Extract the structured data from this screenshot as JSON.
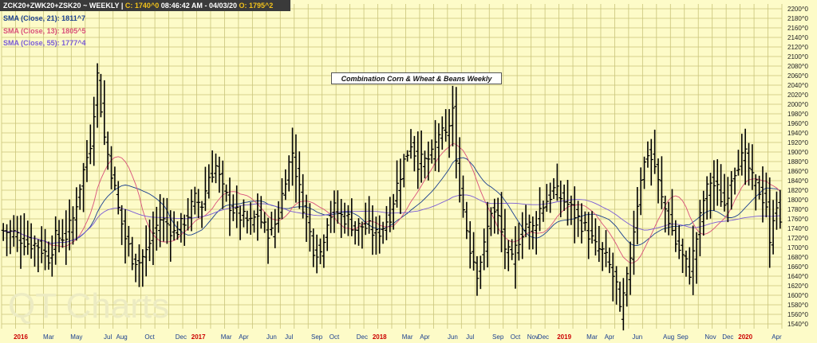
{
  "header": {
    "symbol": "ZCK20+ZWK20+ZSK20",
    "separator1": "~",
    "timeframe": "WEEKLY",
    "separator2": "|",
    "close": "C: 1740^0",
    "time": "08:46:42 AM",
    "separator3": "-",
    "date": "04/03/20",
    "open": "O: 1795^2"
  },
  "legend": [
    {
      "label": "SMA (Close, 21): 1811^7",
      "color": "#1a3f8f"
    },
    {
      "label": "SMA (Close, 13): 1805^5",
      "color": "#d9507a"
    },
    {
      "label": "SMA (Close, 55): 1777^4",
      "color": "#7a5cd6"
    }
  ],
  "watermark": "QT Charts",
  "colors": {
    "background": "#fdfbc8",
    "grid": "#c9c47a",
    "bars": "#000000",
    "year_labels": "#cc0000",
    "month_labels": "#1a3f8f"
  },
  "chart_data": {
    "type": "ohlc",
    "title": "Combination Corn & Wheat & Beans Weekly",
    "ylim": [
      1530,
      2210
    ],
    "y_ticks": [
      "1540^0",
      "1560^0",
      "1580^0",
      "1600^0",
      "1620^0",
      "1640^0",
      "1660^0",
      "1680^0",
      "1700^0",
      "1720^0",
      "1740^0",
      "1760^0",
      "1780^0",
      "1800^0",
      "1820^0",
      "1840^0",
      "1860^0",
      "1880^0",
      "1900^0",
      "1920^0",
      "1940^0",
      "1960^0",
      "1980^0",
      "2000^0",
      "2020^0",
      "2040^0",
      "2060^0",
      "2080^0",
      "2100^0",
      "2120^0",
      "2140^0",
      "2160^0",
      "2180^0",
      "2200^0"
    ],
    "grid": true,
    "x_labels": [
      {
        "label": "2016",
        "week": 5,
        "kind": "year"
      },
      {
        "label": "Mar",
        "week": 13,
        "kind": "month"
      },
      {
        "label": "May",
        "week": 21,
        "kind": "month"
      },
      {
        "label": "Jul",
        "week": 30,
        "kind": "month"
      },
      {
        "label": "Aug",
        "week": 34,
        "kind": "month"
      },
      {
        "label": "Oct",
        "week": 42,
        "kind": "month"
      },
      {
        "label": "Dec",
        "week": 51,
        "kind": "month"
      },
      {
        "label": "2017",
        "week": 56,
        "kind": "year"
      },
      {
        "label": "Mar",
        "week": 64,
        "kind": "month"
      },
      {
        "label": "Apr",
        "week": 69,
        "kind": "month"
      },
      {
        "label": "Jun",
        "week": 77,
        "kind": "month"
      },
      {
        "label": "Jul",
        "week": 82,
        "kind": "month"
      },
      {
        "label": "Sep",
        "week": 90,
        "kind": "month"
      },
      {
        "label": "Oct",
        "week": 95,
        "kind": "month"
      },
      {
        "label": "Dec",
        "week": 103,
        "kind": "month"
      },
      {
        "label": "2018",
        "week": 108,
        "kind": "year"
      },
      {
        "label": "Mar",
        "week": 116,
        "kind": "month"
      },
      {
        "label": "Apr",
        "week": 121,
        "kind": "month"
      },
      {
        "label": "Jun",
        "week": 129,
        "kind": "month"
      },
      {
        "label": "Jul",
        "week": 134,
        "kind": "month"
      },
      {
        "label": "Sep",
        "week": 142,
        "kind": "month"
      },
      {
        "label": "Oct",
        "week": 147,
        "kind": "month"
      },
      {
        "label": "Nov",
        "week": 152,
        "kind": "month"
      },
      {
        "label": "Dec",
        "week": 155,
        "kind": "month"
      },
      {
        "label": "2019",
        "week": 161,
        "kind": "year"
      },
      {
        "label": "Mar",
        "week": 169,
        "kind": "month"
      },
      {
        "label": "Apr",
        "week": 174,
        "kind": "month"
      },
      {
        "label": "Jun",
        "week": 182,
        "kind": "month"
      },
      {
        "label": "Aug",
        "week": 191,
        "kind": "month"
      },
      {
        "label": "Sep",
        "week": 195,
        "kind": "month"
      },
      {
        "label": "Nov",
        "week": 203,
        "kind": "month"
      },
      {
        "label": "Dec",
        "week": 208,
        "kind": "month"
      },
      {
        "label": "2020",
        "week": 213,
        "kind": "year"
      },
      {
        "label": "Apr",
        "week": 222,
        "kind": "month"
      }
    ],
    "key_closes": [
      [
        0,
        1735
      ],
      [
        3,
        1730
      ],
      [
        7,
        1710
      ],
      [
        10,
        1705
      ],
      [
        13,
        1680
      ],
      [
        15,
        1720
      ],
      [
        18,
        1725
      ],
      [
        20,
        1760
      ],
      [
        22,
        1830
      ],
      [
        25,
        1920
      ],
      [
        27,
        2060
      ],
      [
        29,
        1930
      ],
      [
        31,
        1860
      ],
      [
        33,
        1780
      ],
      [
        35,
        1720
      ],
      [
        37,
        1680
      ],
      [
        39,
        1670
      ],
      [
        41,
        1690
      ],
      [
        43,
        1730
      ],
      [
        45,
        1760
      ],
      [
        47,
        1750
      ],
      [
        49,
        1730
      ],
      [
        51,
        1745
      ],
      [
        53,
        1770
      ],
      [
        55,
        1800
      ],
      [
        57,
        1790
      ],
      [
        59,
        1850
      ],
      [
        61,
        1870
      ],
      [
        63,
        1820
      ],
      [
        65,
        1790
      ],
      [
        67,
        1770
      ],
      [
        69,
        1760
      ],
      [
        71,
        1750
      ],
      [
        73,
        1770
      ],
      [
        75,
        1740
      ],
      [
        77,
        1730
      ],
      [
        79,
        1770
      ],
      [
        81,
        1850
      ],
      [
        83,
        1900
      ],
      [
        85,
        1820
      ],
      [
        87,
        1760
      ],
      [
        89,
        1700
      ],
      [
        91,
        1690
      ],
      [
        93,
        1760
      ],
      [
        95,
        1780
      ],
      [
        97,
        1765
      ],
      [
        99,
        1760
      ],
      [
        101,
        1740
      ],
      [
        103,
        1745
      ],
      [
        105,
        1740
      ],
      [
        107,
        1725
      ],
      [
        109,
        1745
      ],
      [
        111,
        1770
      ],
      [
        113,
        1830
      ],
      [
        115,
        1880
      ],
      [
        117,
        1920
      ],
      [
        119,
        1880
      ],
      [
        121,
        1880
      ],
      [
        123,
        1890
      ],
      [
        125,
        1940
      ],
      [
        127,
        1930
      ],
      [
        129,
        1990
      ],
      [
        130,
        1870
      ],
      [
        132,
        1780
      ],
      [
        134,
        1700
      ],
      [
        136,
        1650
      ],
      [
        138,
        1700
      ],
      [
        140,
        1780
      ],
      [
        142,
        1760
      ],
      [
        144,
        1700
      ],
      [
        146,
        1670
      ],
      [
        148,
        1720
      ],
      [
        150,
        1750
      ],
      [
        152,
        1740
      ],
      [
        154,
        1780
      ],
      [
        156,
        1800
      ],
      [
        158,
        1820
      ],
      [
        160,
        1805
      ],
      [
        162,
        1790
      ],
      [
        164,
        1770
      ],
      [
        166,
        1750
      ],
      [
        168,
        1730
      ],
      [
        170,
        1700
      ],
      [
        172,
        1690
      ],
      [
        174,
        1660
      ],
      [
        176,
        1620
      ],
      [
        177,
        1560
      ],
      [
        179,
        1630
      ],
      [
        181,
        1740
      ],
      [
        183,
        1850
      ],
      [
        185,
        1900
      ],
      [
        187,
        1870
      ],
      [
        189,
        1800
      ],
      [
        191,
        1760
      ],
      [
        193,
        1710
      ],
      [
        195,
        1680
      ],
      [
        197,
        1650
      ],
      [
        199,
        1720
      ],
      [
        201,
        1800
      ],
      [
        203,
        1840
      ],
      [
        205,
        1820
      ],
      [
        207,
        1790
      ],
      [
        209,
        1850
      ],
      [
        211,
        1880
      ],
      [
        213,
        1890
      ],
      [
        215,
        1840
      ],
      [
        217,
        1820
      ],
      [
        219,
        1790
      ],
      [
        220,
        1700
      ],
      [
        221,
        1770
      ],
      [
        222,
        1795
      ],
      [
        223,
        1740
      ]
    ],
    "sma_lengths": [
      21,
      13,
      55
    ]
  }
}
